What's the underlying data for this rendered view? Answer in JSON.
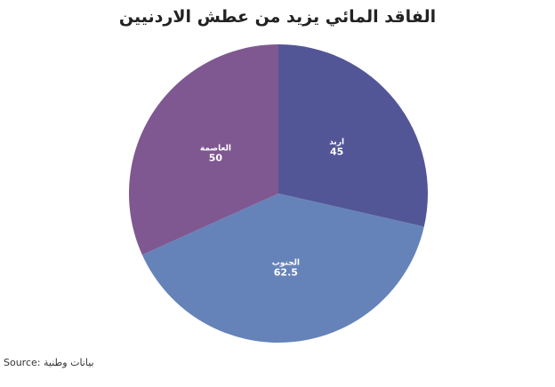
{
  "chart_data": {
    "type": "pie",
    "title": "الفاقد المائي يزيد من عطش الاردنيين",
    "categories": [
      "اربد",
      "الجنوب",
      "العاصمة"
    ],
    "values": [
      45,
      62.5,
      50
    ],
    "colors": [
      "#525696",
      "#6583b8",
      "#7f5891"
    ],
    "start_angle": "top",
    "direction": "clockwise"
  },
  "source": {
    "label": "Source:",
    "text": "بيانات وطنية"
  }
}
